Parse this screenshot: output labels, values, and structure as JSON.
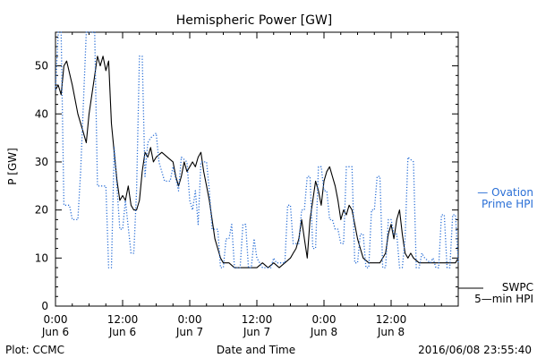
{
  "chart_data": {
    "type": "line",
    "title": "Hemispheric Power [GW]",
    "xlabel": "Date and Time",
    "ylabel": "P [GW]",
    "ylim": [
      0,
      57
    ],
    "xlim": [
      "2016-06-06 00:00",
      "2016-06-09 00:00"
    ],
    "grid": false,
    "x_ticks": [
      {
        "time": "2016-06-06 00:00",
        "line1": "0:00",
        "line2": "Jun 6"
      },
      {
        "time": "2016-06-06 12:00",
        "line1": "12:00",
        "line2": "Jun 6"
      },
      {
        "time": "2016-06-07 00:00",
        "line1": "0:00",
        "line2": "Jun 7"
      },
      {
        "time": "2016-06-07 12:00",
        "line1": "12:00",
        "line2": "Jun 7"
      },
      {
        "time": "2016-06-08 00:00",
        "line1": "0:00",
        "line2": "Jun 8"
      },
      {
        "time": "2016-06-08 12:00",
        "line1": "12:00",
        "line2": "Jun 8"
      }
    ],
    "y_ticks": [
      0,
      10,
      20,
      30,
      40,
      50
    ],
    "series": [
      {
        "name": "SWPC 5-min HPI",
        "label_lines": [
          "SWPC",
          "5—min HPI"
        ],
        "color": "#000000",
        "style": "solid",
        "points": [
          [
            "2016-06-06 00:00",
            45
          ],
          [
            "2016-06-06 00:30",
            46
          ],
          [
            "2016-06-06 01:00",
            44
          ],
          [
            "2016-06-06 01:30",
            50
          ],
          [
            "2016-06-06 02:00",
            51
          ],
          [
            "2016-06-06 03:00",
            46
          ],
          [
            "2016-06-06 04:00",
            40
          ],
          [
            "2016-06-06 05:00",
            36
          ],
          [
            "2016-06-06 05:30",
            34
          ],
          [
            "2016-06-06 06:00",
            40
          ],
          [
            "2016-06-06 07:00",
            48
          ],
          [
            "2016-06-06 07:30",
            52
          ],
          [
            "2016-06-06 08:00",
            50
          ],
          [
            "2016-06-06 08:30",
            52
          ],
          [
            "2016-06-06 09:00",
            49
          ],
          [
            "2016-06-06 09:30",
            51
          ],
          [
            "2016-06-06 10:00",
            38
          ],
          [
            "2016-06-06 10:30",
            32
          ],
          [
            "2016-06-06 11:00",
            26
          ],
          [
            "2016-06-06 11:30",
            22
          ],
          [
            "2016-06-06 12:00",
            23
          ],
          [
            "2016-06-06 12:30",
            22
          ],
          [
            "2016-06-06 13:00",
            25
          ],
          [
            "2016-06-06 13:30",
            21
          ],
          [
            "2016-06-06 14:00",
            20
          ],
          [
            "2016-06-06 14:30",
            20
          ],
          [
            "2016-06-06 15:00",
            22
          ],
          [
            "2016-06-06 15:30",
            28
          ],
          [
            "2016-06-06 16:00",
            32
          ],
          [
            "2016-06-06 16:30",
            31
          ],
          [
            "2016-06-06 17:00",
            33
          ],
          [
            "2016-06-06 17:30",
            30
          ],
          [
            "2016-06-06 18:00",
            31
          ],
          [
            "2016-06-06 19:00",
            32
          ],
          [
            "2016-06-06 20:00",
            31
          ],
          [
            "2016-06-06 21:00",
            30
          ],
          [
            "2016-06-06 21:30",
            27
          ],
          [
            "2016-06-06 22:00",
            25
          ],
          [
            "2016-06-06 22:30",
            27
          ],
          [
            "2016-06-06 23:00",
            30
          ],
          [
            "2016-06-06 23:30",
            28
          ],
          [
            "2016-06-07 00:00",
            29
          ],
          [
            "2016-06-07 00:30",
            30
          ],
          [
            "2016-06-07 01:00",
            29
          ],
          [
            "2016-06-07 01:30",
            31
          ],
          [
            "2016-06-07 02:00",
            32
          ],
          [
            "2016-06-07 02:30",
            28
          ],
          [
            "2016-06-07 03:00",
            25
          ],
          [
            "2016-06-07 03:30",
            22
          ],
          [
            "2016-06-07 04:00",
            18
          ],
          [
            "2016-06-07 04:30",
            14
          ],
          [
            "2016-06-07 05:00",
            12
          ],
          [
            "2016-06-07 05:30",
            10
          ],
          [
            "2016-06-07 06:00",
            9
          ],
          [
            "2016-06-07 07:00",
            9
          ],
          [
            "2016-06-07 08:00",
            8
          ],
          [
            "2016-06-07 12:00",
            8
          ],
          [
            "2016-06-07 13:00",
            9
          ],
          [
            "2016-06-07 14:00",
            8
          ],
          [
            "2016-06-07 15:00",
            9
          ],
          [
            "2016-06-07 16:00",
            8
          ],
          [
            "2016-06-07 17:00",
            9
          ],
          [
            "2016-06-07 18:00",
            10
          ],
          [
            "2016-06-07 18:30",
            11
          ],
          [
            "2016-06-07 19:00",
            12
          ],
          [
            "2016-06-07 19:30",
            14
          ],
          [
            "2016-06-07 20:00",
            18
          ],
          [
            "2016-06-07 20:30",
            14
          ],
          [
            "2016-06-07 21:00",
            10
          ],
          [
            "2016-06-07 21:30",
            18
          ],
          [
            "2016-06-07 22:00",
            22
          ],
          [
            "2016-06-07 22:30",
            26
          ],
          [
            "2016-06-07 23:00",
            24
          ],
          [
            "2016-06-07 23:30",
            21
          ],
          [
            "2016-06-08 00:00",
            26
          ],
          [
            "2016-06-08 00:30",
            28
          ],
          [
            "2016-06-08 01:00",
            29
          ],
          [
            "2016-06-08 01:30",
            27
          ],
          [
            "2016-06-08 02:00",
            25
          ],
          [
            "2016-06-08 02:30",
            22
          ],
          [
            "2016-06-08 03:00",
            18
          ],
          [
            "2016-06-08 03:30",
            20
          ],
          [
            "2016-06-08 04:00",
            19
          ],
          [
            "2016-06-08 04:30",
            21
          ],
          [
            "2016-06-08 05:00",
            20
          ],
          [
            "2016-06-08 05:30",
            17
          ],
          [
            "2016-06-08 06:00",
            14
          ],
          [
            "2016-06-08 06:30",
            12
          ],
          [
            "2016-06-08 07:00",
            10
          ],
          [
            "2016-06-08 08:00",
            9
          ],
          [
            "2016-06-08 10:00",
            9
          ],
          [
            "2016-06-08 11:00",
            11
          ],
          [
            "2016-06-08 11:30",
            15
          ],
          [
            "2016-06-08 12:00",
            17
          ],
          [
            "2016-06-08 12:30",
            14
          ],
          [
            "2016-06-08 13:00",
            18
          ],
          [
            "2016-06-08 13:30",
            20
          ],
          [
            "2016-06-08 14:00",
            15
          ],
          [
            "2016-06-08 14:30",
            11
          ],
          [
            "2016-06-08 15:00",
            10
          ],
          [
            "2016-06-08 15:30",
            11
          ],
          [
            "2016-06-08 16:00",
            10
          ],
          [
            "2016-06-08 17:00",
            9
          ],
          [
            "2016-06-08 23:30",
            9
          ],
          [
            "2016-06-09 00:00",
            10
          ]
        ]
      },
      {
        "name": "Ovation Prime HPI",
        "label_lines": [
          "— Ovation",
          "Prime HPI"
        ],
        "color": "#2a6fd6",
        "style": "dotted",
        "points": [
          [
            "2016-06-06 00:00",
            45
          ],
          [
            "2016-06-06 00:30",
            57
          ],
          [
            "2016-06-06 01:00",
            57
          ],
          [
            "2016-06-06 01:30",
            21
          ],
          [
            "2016-06-06 02:30",
            21
          ],
          [
            "2016-06-06 03:00",
            18
          ],
          [
            "2016-06-06 04:00",
            18
          ],
          [
            "2016-06-06 04:30",
            28
          ],
          [
            "2016-06-06 05:30",
            57
          ],
          [
            "2016-06-06 07:00",
            57
          ],
          [
            "2016-06-06 07:30",
            25
          ],
          [
            "2016-06-06 09:00",
            25
          ],
          [
            "2016-06-06 09:30",
            8
          ],
          [
            "2016-06-06 10:00",
            8
          ],
          [
            "2016-06-06 10:30",
            33
          ],
          [
            "2016-06-06 11:30",
            16
          ],
          [
            "2016-06-06 12:00",
            16
          ],
          [
            "2016-06-06 12:30",
            22
          ],
          [
            "2016-06-06 13:30",
            11
          ],
          [
            "2016-06-06 14:00",
            11
          ],
          [
            "2016-06-06 14:30",
            24
          ],
          [
            "2016-06-06 15:00",
            52
          ],
          [
            "2016-06-06 15:30",
            52
          ],
          [
            "2016-06-06 16:00",
            27
          ],
          [
            "2016-06-06 16:30",
            34
          ],
          [
            "2016-06-06 17:00",
            35
          ],
          [
            "2016-06-06 18:00",
            36
          ],
          [
            "2016-06-06 18:30",
            30
          ],
          [
            "2016-06-06 19:30",
            26
          ],
          [
            "2016-06-06 20:30",
            26
          ],
          [
            "2016-06-06 21:00",
            29
          ],
          [
            "2016-06-06 22:00",
            24
          ],
          [
            "2016-06-06 22:30",
            31
          ],
          [
            "2016-06-06 23:30",
            30
          ],
          [
            "2016-06-07 00:00",
            22
          ],
          [
            "2016-06-07 00:30",
            20
          ],
          [
            "2016-06-07 01:00",
            24
          ],
          [
            "2016-06-07 01:30",
            17
          ],
          [
            "2016-06-07 02:00",
            30
          ],
          [
            "2016-06-07 03:00",
            30
          ],
          [
            "2016-06-07 03:30",
            24
          ],
          [
            "2016-06-07 04:00",
            16
          ],
          [
            "2016-06-07 05:00",
            16
          ],
          [
            "2016-06-07 05:30",
            8
          ],
          [
            "2016-06-07 06:00",
            8
          ],
          [
            "2016-06-07 06:30",
            14
          ],
          [
            "2016-06-07 07:00",
            14
          ],
          [
            "2016-06-07 07:30",
            17
          ],
          [
            "2016-06-07 08:00",
            8
          ],
          [
            "2016-06-07 09:00",
            8
          ],
          [
            "2016-06-07 09:30",
            17
          ],
          [
            "2016-06-07 10:00",
            17
          ],
          [
            "2016-06-07 10:30",
            8
          ],
          [
            "2016-06-07 11:00",
            8
          ],
          [
            "2016-06-07 11:30",
            14
          ],
          [
            "2016-06-07 12:00",
            10
          ],
          [
            "2016-06-07 13:00",
            8
          ],
          [
            "2016-06-07 14:30",
            8
          ],
          [
            "2016-06-07 15:00",
            10
          ],
          [
            "2016-06-07 15:30",
            9
          ],
          [
            "2016-06-07 17:00",
            9
          ],
          [
            "2016-06-07 17:30",
            21
          ],
          [
            "2016-06-07 18:00",
            21
          ],
          [
            "2016-06-07 18:30",
            13
          ],
          [
            "2016-06-07 19:30",
            13
          ],
          [
            "2016-06-07 20:00",
            20
          ],
          [
            "2016-06-07 20:30",
            20
          ],
          [
            "2016-06-07 21:00",
            27
          ],
          [
            "2016-06-07 21:30",
            27
          ],
          [
            "2016-06-07 22:00",
            12
          ],
          [
            "2016-06-07 22:30",
            12
          ],
          [
            "2016-06-07 23:00",
            29
          ],
          [
            "2016-06-07 23:30",
            29
          ],
          [
            "2016-06-08 00:00",
            24
          ],
          [
            "2016-06-08 00:30",
            24
          ],
          [
            "2016-06-08 01:00",
            18
          ],
          [
            "2016-06-08 01:30",
            18
          ],
          [
            "2016-06-08 02:00",
            16
          ],
          [
            "2016-06-08 02:30",
            16
          ],
          [
            "2016-06-08 03:00",
            13
          ],
          [
            "2016-06-08 03:30",
            13
          ],
          [
            "2016-06-08 04:00",
            29
          ],
          [
            "2016-06-08 05:00",
            29
          ],
          [
            "2016-06-08 05:30",
            9
          ],
          [
            "2016-06-08 06:00",
            9
          ],
          [
            "2016-06-08 06:30",
            15
          ],
          [
            "2016-06-08 07:00",
            15
          ],
          [
            "2016-06-08 07:30",
            8
          ],
          [
            "2016-06-08 08:00",
            8
          ],
          [
            "2016-06-08 08:30",
            20
          ],
          [
            "2016-06-08 09:00",
            20
          ],
          [
            "2016-06-08 09:30",
            27
          ],
          [
            "2016-06-08 10:00",
            27
          ],
          [
            "2016-06-08 10:30",
            8
          ],
          [
            "2016-06-08 11:00",
            8
          ],
          [
            "2016-06-08 11:30",
            18
          ],
          [
            "2016-06-08 12:00",
            18
          ],
          [
            "2016-06-08 12:30",
            15
          ],
          [
            "2016-06-08 13:00",
            15
          ],
          [
            "2016-06-08 13:30",
            8
          ],
          [
            "2016-06-08 14:00",
            8
          ],
          [
            "2016-06-08 14:30",
            14
          ],
          [
            "2016-06-08 15:00",
            31
          ],
          [
            "2016-06-08 16:00",
            30
          ],
          [
            "2016-06-08 16:30",
            8
          ],
          [
            "2016-06-08 17:00",
            8
          ],
          [
            "2016-06-08 17:30",
            11
          ],
          [
            "2016-06-08 18:00",
            10
          ],
          [
            "2016-06-08 19:00",
            9
          ],
          [
            "2016-06-08 19:30",
            10
          ],
          [
            "2016-06-08 20:00",
            8
          ],
          [
            "2016-06-08 20:30",
            8
          ],
          [
            "2016-06-08 21:00",
            19
          ],
          [
            "2016-06-08 21:30",
            19
          ],
          [
            "2016-06-08 22:00",
            8
          ],
          [
            "2016-06-08 22:30",
            8
          ],
          [
            "2016-06-08 23:00",
            19
          ],
          [
            "2016-06-08 23:30",
            19
          ],
          [
            "2016-06-09 00:00",
            9
          ]
        ]
      }
    ],
    "footer_left": "Plot: CCMC",
    "footer_right": "2016/06/08 23:55:40"
  }
}
